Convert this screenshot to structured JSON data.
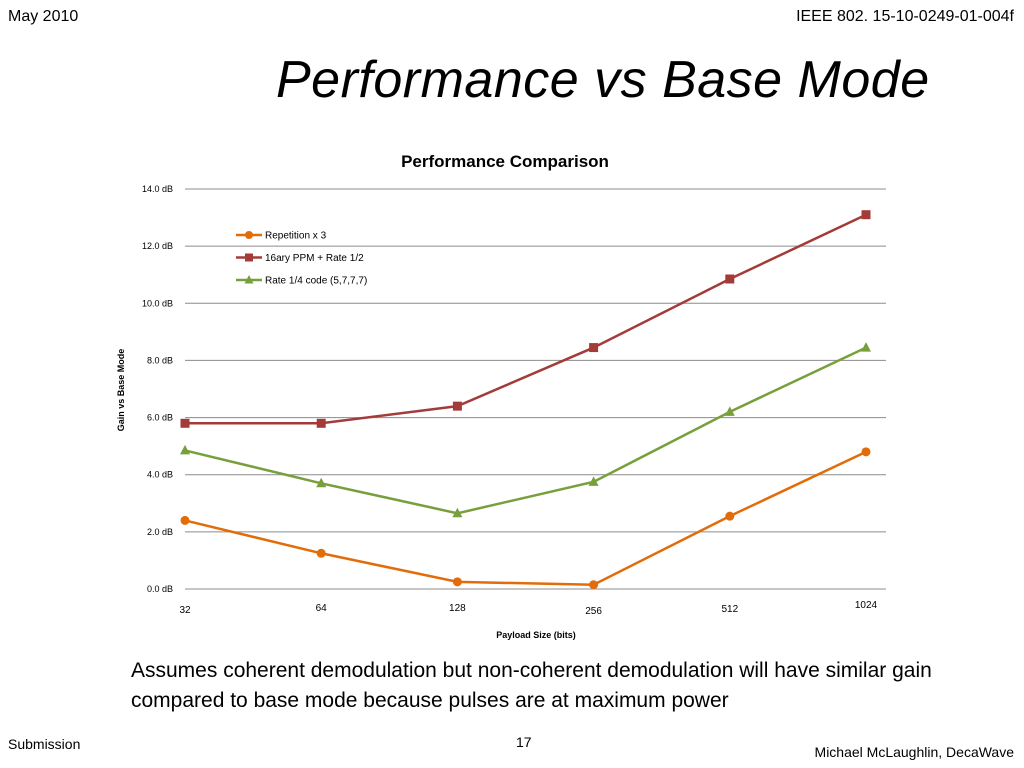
{
  "header": {
    "date": "May 2010",
    "doc_id": "IEEE 802. 15-10-0249-01-004f"
  },
  "slide_title": "Performance vs Base Mode",
  "note": "Assumes coherent demodulation but non-coherent demodulation will have similar gain compared to base mode because pulses are at maximum power",
  "footer": {
    "left": "Submission",
    "page": "17",
    "author": "Michael McLaughlin, DecaWave"
  },
  "chart_data": {
    "type": "line",
    "title": "Performance Comparison",
    "xlabel": "Payload Size (bits)",
    "ylabel": "Gain  vs Base Mode",
    "categories": [
      "32",
      "64",
      "128",
      "256",
      "512",
      "1024"
    ],
    "y_ticks": [
      "0.0 dB",
      "2.0 dB",
      "4.0 dB",
      "6.0 dB",
      "8.0 dB",
      "10.0 dB",
      "12.0 dB",
      "14.0 dB"
    ],
    "ylim": [
      0,
      14
    ],
    "grid": true,
    "legend_position": "top-left",
    "series": [
      {
        "name": "Repetition x 3",
        "color": "#E36C0A",
        "marker": "circle",
        "values": [
          2.4,
          1.25,
          0.25,
          0.15,
          2.55,
          4.8
        ]
      },
      {
        "name": "16ary PPM + Rate  1/2",
        "color": "#A33B38",
        "marker": "square",
        "values": [
          5.8,
          5.8,
          6.4,
          8.45,
          10.85,
          13.1
        ]
      },
      {
        "name": "Rate 1/4 code (5,7,7,7)",
        "color": "#77A03C",
        "marker": "triangle",
        "values": [
          4.85,
          3.7,
          2.65,
          3.75,
          6.2,
          8.45
        ]
      }
    ]
  }
}
